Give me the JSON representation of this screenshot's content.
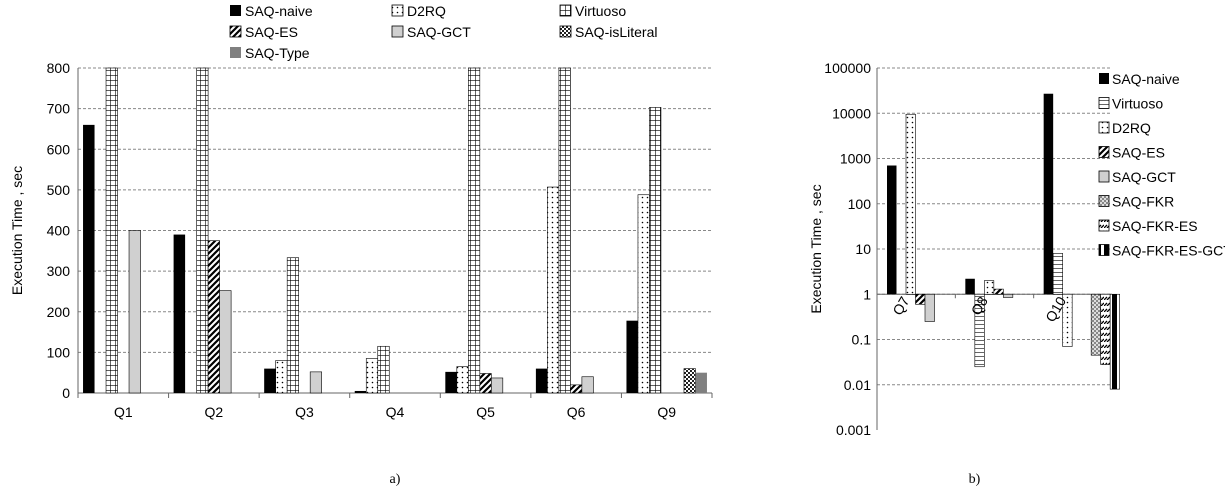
{
  "chart_data": [
    {
      "type": "bar",
      "caption": "a)",
      "ylabel": "Execution Time , sec",
      "ylim": [
        0,
        800
      ],
      "yticks": [
        "0",
        "100",
        "200",
        "300",
        "400",
        "500",
        "600",
        "700",
        "800"
      ],
      "grid": true,
      "legend_position": "top",
      "categories": [
        "Q1",
        "Q2",
        "Q3",
        "Q4",
        "Q5",
        "Q6",
        "Q9"
      ],
      "series": [
        {
          "name": "SAQ-naive",
          "pattern": "solid-black",
          "values": [
            660,
            390,
            60,
            5,
            52,
            60,
            178
          ]
        },
        {
          "name": "D2RQ",
          "pattern": "dots",
          "values": [
            null,
            null,
            80,
            85,
            65,
            507,
            488
          ]
        },
        {
          "name": "Virtuoso",
          "pattern": "grid",
          "values": [
            800,
            800,
            333,
            115,
            800,
            800,
            703
          ]
        },
        {
          "name": "SAQ-ES",
          "pattern": "diagonal",
          "values": [
            null,
            375,
            null,
            null,
            48,
            20,
            null
          ]
        },
        {
          "name": "SAQ-GCT",
          "pattern": "light-gray",
          "values": [
            400,
            252,
            52,
            null,
            37,
            40,
            null
          ]
        },
        {
          "name": "SAQ-isLiteral",
          "pattern": "checker",
          "values": [
            null,
            null,
            null,
            null,
            null,
            null,
            60
          ]
        },
        {
          "name": "SAQ-Type",
          "pattern": "solid-gray",
          "values": [
            null,
            null,
            null,
            null,
            null,
            null,
            50
          ]
        }
      ]
    },
    {
      "type": "bar",
      "caption": "b)",
      "ylabel": "Execution Time , sec",
      "yscale": "log",
      "ylim": [
        0.001,
        100000
      ],
      "yticks": [
        "0.001",
        "0.01",
        "0.1",
        "1",
        "10",
        "100",
        "1000",
        "10000",
        "100000"
      ],
      "grid": true,
      "legend_position": "right",
      "categories": [
        "Q7",
        "Q8",
        "Q10"
      ],
      "series": [
        {
          "name": "SAQ-naive",
          "pattern": "solid-black",
          "values": [
            700,
            2.2,
            27000
          ]
        },
        {
          "name": "Virtuoso",
          "pattern": "hstripes",
          "values": [
            null,
            0.025,
            8
          ]
        },
        {
          "name": "D2RQ",
          "pattern": "dots",
          "values": [
            9500,
            2.0,
            0.07
          ]
        },
        {
          "name": "SAQ-ES",
          "pattern": "diagonal",
          "values": [
            0.6,
            1.3,
            null
          ]
        },
        {
          "name": "SAQ-GCT",
          "pattern": "light-gray",
          "values": [
            0.25,
            0.85,
            null
          ]
        },
        {
          "name": "SAQ-FKR",
          "pattern": "checker-light",
          "values": [
            null,
            null,
            0.045
          ]
        },
        {
          "name": "SAQ-FKR-ES",
          "pattern": "dashed-diagonal",
          "values": [
            null,
            null,
            0.028
          ]
        },
        {
          "name": "SAQ-FKR-ES-GCT",
          "pattern": "half-black",
          "values": [
            null,
            null,
            0.008
          ]
        }
      ]
    }
  ]
}
